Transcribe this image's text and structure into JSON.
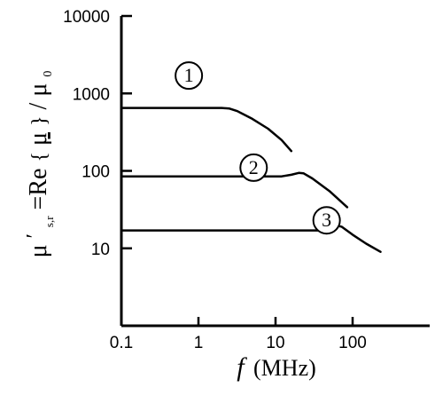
{
  "chart_data": {
    "type": "line",
    "xlabel": {
      "symbol": "f",
      "unit": "(MHz)"
    },
    "ylabel": {
      "mu": "μ",
      "prime": "′",
      "subscript": "s,r",
      "equals": " =Re",
      "brace_open": "{",
      "mu_inner": "μ",
      "brace_close": "}",
      "slash": "/",
      "mu_zero": "μ",
      "zero": "0"
    },
    "x_scale": "log",
    "y_scale": "log",
    "xlim": [
      0.1,
      1000
    ],
    "ylim": [
      1,
      10000
    ],
    "x_ticks": [
      {
        "value": 0.1,
        "label": "0.1"
      },
      {
        "value": 1,
        "label": "1"
      },
      {
        "value": 10,
        "label": "10"
      },
      {
        "value": 100,
        "label": "100"
      }
    ],
    "y_ticks": [
      {
        "value": 10,
        "label": "10"
      },
      {
        "value": 100,
        "label": "100"
      },
      {
        "value": 1000,
        "label": "1000"
      },
      {
        "value": 10000,
        "label": "10000"
      }
    ],
    "grid": false,
    "legend": "none",
    "series": [
      {
        "label": "1",
        "label_at": [
          0.75,
          1700
        ],
        "points": [
          [
            0.1,
            650
          ],
          [
            2.0,
            650
          ],
          [
            2.5,
            640
          ],
          [
            3.2,
            590
          ],
          [
            5,
            470
          ],
          [
            8,
            350
          ],
          [
            12,
            250
          ],
          [
            16,
            180
          ]
        ]
      },
      {
        "label": "2",
        "label_at": [
          5.2,
          110
        ],
        "points": [
          [
            0.1,
            85
          ],
          [
            12,
            85
          ],
          [
            16,
            89
          ],
          [
            20,
            94
          ],
          [
            23,
            93
          ],
          [
            30,
            80
          ],
          [
            50,
            55
          ],
          [
            85,
            34
          ]
        ]
      },
      {
        "label": "3",
        "label_at": [
          46,
          23
        ],
        "points": [
          [
            0.1,
            17
          ],
          [
            45,
            17
          ],
          [
            55,
            17.5
          ],
          [
            65,
            19.5
          ],
          [
            72,
            19
          ],
          [
            100,
            15
          ],
          [
            150,
            11.5
          ],
          [
            230,
            9
          ]
        ]
      }
    ]
  }
}
